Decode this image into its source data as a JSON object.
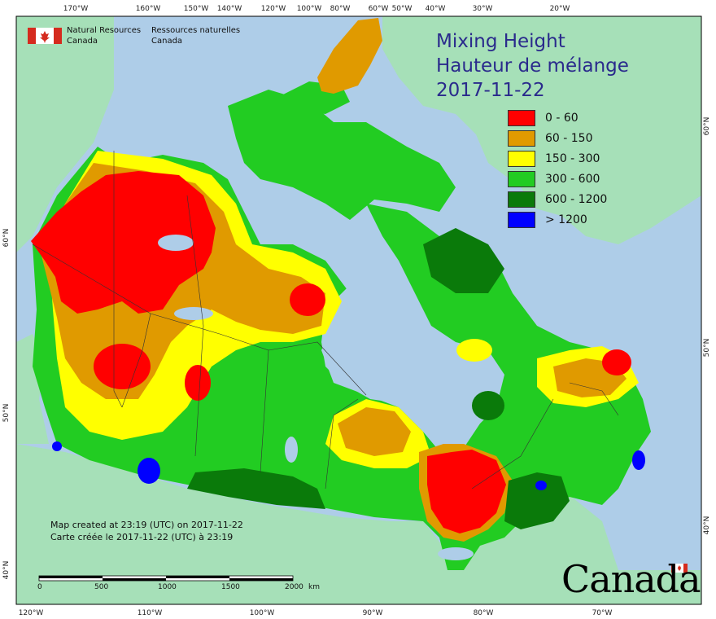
{
  "title": {
    "line1": "Mixing Height",
    "line2": "Hauteur de mélange",
    "date": "2017-11-22"
  },
  "agency": {
    "en_line1": "Natural Resources",
    "en_line2": "Canada",
    "fr_line1": "Ressources naturelles",
    "fr_line2": "Canada"
  },
  "legend": [
    {
      "label": "0 - 60",
      "color": "#ff0000"
    },
    {
      "label": "60 - 150",
      "color": "#e09a00"
    },
    {
      "label": "150 - 300",
      "color": "#ffff00"
    },
    {
      "label": "300 - 600",
      "color": "#22cc22"
    },
    {
      "label": "600 - 1200",
      "color": "#0a7a0a"
    },
    {
      "label": "> 1200",
      "color": "#0000ff"
    }
  ],
  "created_en": "Map created at 23:19 (UTC) on 2017-11-22",
  "created_fr": "Carte créée le 2017-11-22 (UTC) à 23:19",
  "wordmark": "Canada",
  "scalebar": {
    "ticks": [
      "0",
      "500",
      "1000",
      "1500",
      "2000"
    ],
    "unit": "km"
  },
  "graticule": {
    "top": [
      "170°W",
      "160°W",
      "150°W",
      "140°W",
      "120°W",
      "100°W",
      "80°W",
      "60°W",
      "50°W",
      "40°W",
      "30°W",
      "20°W"
    ],
    "bottom": [
      "120°W",
      "110°W",
      "100°W",
      "90°W",
      "80°W",
      "70°W"
    ],
    "left": [
      "60°N",
      "50°N",
      "40°N"
    ],
    "right": [
      "60°N",
      "50°N",
      "40°N"
    ]
  },
  "colors": {
    "ocean": "#aecde8",
    "land": "#a6e0b8",
    "frame": "#000000"
  }
}
